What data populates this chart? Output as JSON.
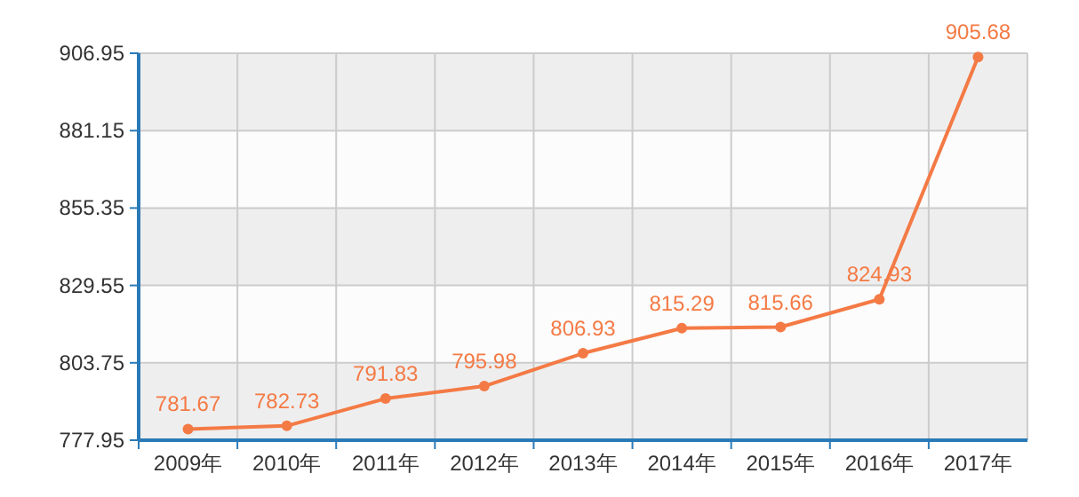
{
  "chart_data": {
    "type": "line",
    "categories": [
      "2009年",
      "2010年",
      "2011年",
      "2012年",
      "2013年",
      "2014年",
      "2015年",
      "2016年",
      "2017年"
    ],
    "series": [
      {
        "color": "#f47a45",
        "values": [
          781.67,
          782.73,
          791.83,
          795.98,
          806.93,
          815.29,
          815.66,
          824.93,
          905.68
        ]
      }
    ],
    "ylim": [
      777.95,
      906.95
    ],
    "yticks": [
      777.95,
      803.75,
      829.55,
      855.35,
      881.15,
      906.95
    ],
    "grid": true,
    "marker": "circle",
    "line_style": "solid",
    "data_labels": true
  }
}
